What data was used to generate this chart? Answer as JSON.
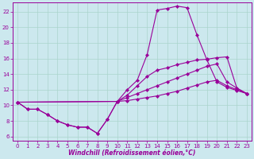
{
  "bg_color": "#cce8ee",
  "line_color": "#990099",
  "grid_color": "#aad4cc",
  "xlabel": "Windchill (Refroidissement éolien,°C)",
  "xlim": [
    -0.5,
    23.5
  ],
  "ylim": [
    5.5,
    23.2
  ],
  "xticks": [
    0,
    1,
    2,
    3,
    4,
    5,
    6,
    7,
    8,
    9,
    10,
    11,
    12,
    13,
    14,
    15,
    16,
    17,
    18,
    19,
    20,
    21,
    22,
    23
  ],
  "yticks": [
    6,
    8,
    10,
    12,
    14,
    16,
    18,
    20,
    22
  ],
  "line1_x": [
    0,
    1,
    2,
    3,
    4,
    5,
    6,
    7,
    8,
    9,
    10,
    11,
    12,
    13,
    14,
    15,
    16,
    17,
    18,
    19,
    20,
    21,
    22,
    23
  ],
  "line1_y": [
    10.4,
    9.5,
    9.5,
    8.8,
    8.0,
    7.5,
    7.2,
    7.2,
    6.4,
    8.2,
    10.5,
    11.3,
    12.5,
    13.7,
    14.5,
    14.8,
    15.2,
    15.5,
    15.8,
    15.9,
    16.1,
    16.2,
    12.2,
    11.5
  ],
  "line2_x": [
    0,
    1,
    2,
    3,
    4,
    5,
    6,
    7,
    8,
    9,
    10,
    11,
    12,
    13,
    14,
    15,
    16,
    17,
    18,
    19,
    20,
    21,
    22,
    23
  ],
  "line2_y": [
    10.4,
    9.5,
    9.5,
    8.8,
    8.0,
    7.5,
    7.2,
    7.2,
    6.4,
    8.2,
    10.5,
    12.0,
    13.2,
    16.5,
    22.2,
    22.4,
    22.7,
    22.5,
    19.0,
    15.8,
    13.0,
    12.3,
    11.9,
    11.5
  ],
  "line3_x": [
    0,
    10,
    11,
    12,
    13,
    14,
    15,
    16,
    17,
    18,
    19,
    20,
    21,
    22,
    23
  ],
  "line3_y": [
    10.4,
    10.5,
    11.0,
    11.5,
    12.0,
    12.5,
    13.0,
    13.5,
    14.0,
    14.5,
    15.0,
    15.3,
    13.0,
    12.2,
    11.5
  ],
  "line4_x": [
    0,
    10,
    11,
    12,
    13,
    14,
    15,
    16,
    17,
    18,
    19,
    20,
    21,
    22,
    23
  ],
  "line4_y": [
    10.4,
    10.5,
    10.6,
    10.8,
    11.0,
    11.2,
    11.5,
    11.8,
    12.2,
    12.6,
    13.0,
    13.2,
    12.5,
    12.0,
    11.5
  ],
  "marker_size": 2.2,
  "line_width": 0.8,
  "xlabel_fontsize": 5.5,
  "tick_fontsize": 5.0
}
